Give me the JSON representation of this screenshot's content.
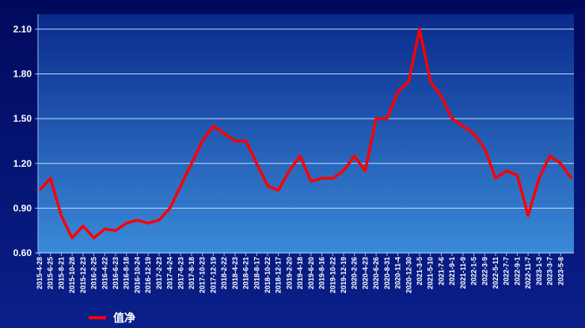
{
  "chart_data": {
    "type": "line",
    "categories": [
      "2015-4-28",
      "2015-6-25",
      "2015-8-21",
      "2015-10-28",
      "2015-12-23",
      "2016-2-25",
      "2016-4-22",
      "2016-6-23",
      "2016-8-18",
      "2016-10-24",
      "2016-12-19",
      "2017-2-23",
      "2017-4-24",
      "2017-6-23",
      "2017-8-18",
      "2017-10-23",
      "2017-12-19",
      "2018-2-22",
      "2018-4-23",
      "2018-6-21",
      "2018-8-17",
      "2018-10-22",
      "2018-12-17",
      "2019-2-20",
      "2019-4-18",
      "2019-6-20",
      "2019-8-16",
      "2019-10-22",
      "2019-12-19",
      "2020-2-26",
      "2020-4-23",
      "2020-6-26",
      "2020-8-31",
      "2020-11-4",
      "2020-12-30",
      "2021-3-5",
      "2021-5-10",
      "2021-7-6",
      "2021-9-1",
      "2021-11-9",
      "2022-1-5",
      "2022-3-9",
      "2022-5-11",
      "2022-7-7",
      "2022-9-1",
      "2022-11-7",
      "2023-1-3",
      "2023-3-7",
      "2023-5-8",
      null
    ],
    "series": [
      {
        "name": "值净",
        "color": "#ff0000",
        "values": [
          1.02,
          1.1,
          0.85,
          0.7,
          0.78,
          0.7,
          0.76,
          0.75,
          0.8,
          0.82,
          0.8,
          0.82,
          0.9,
          1.05,
          1.2,
          1.35,
          1.45,
          1.4,
          1.35,
          1.35,
          1.2,
          1.05,
          1.02,
          1.15,
          1.25,
          1.08,
          1.1,
          1.1,
          1.15,
          1.25,
          1.15,
          1.5,
          1.5,
          1.68,
          1.75,
          2.1,
          1.75,
          1.65,
          1.5,
          1.45,
          1.4,
          1.3,
          1.1,
          1.15,
          1.12,
          0.85,
          1.1,
          1.25,
          1.2,
          1.1
        ]
      }
    ],
    "ylim": [
      0.6,
      2.2
    ],
    "yticks": [
      {
        "value": 0.6,
        "label": "0.60"
      },
      {
        "value": 0.9,
        "label": "0.90"
      },
      {
        "value": 1.2,
        "label": "1.20"
      },
      {
        "value": 1.5,
        "label": "1.50"
      },
      {
        "value": 1.8,
        "label": "1.80"
      },
      {
        "value": 2.1,
        "label": "2.10"
      }
    ],
    "grid": true
  }
}
